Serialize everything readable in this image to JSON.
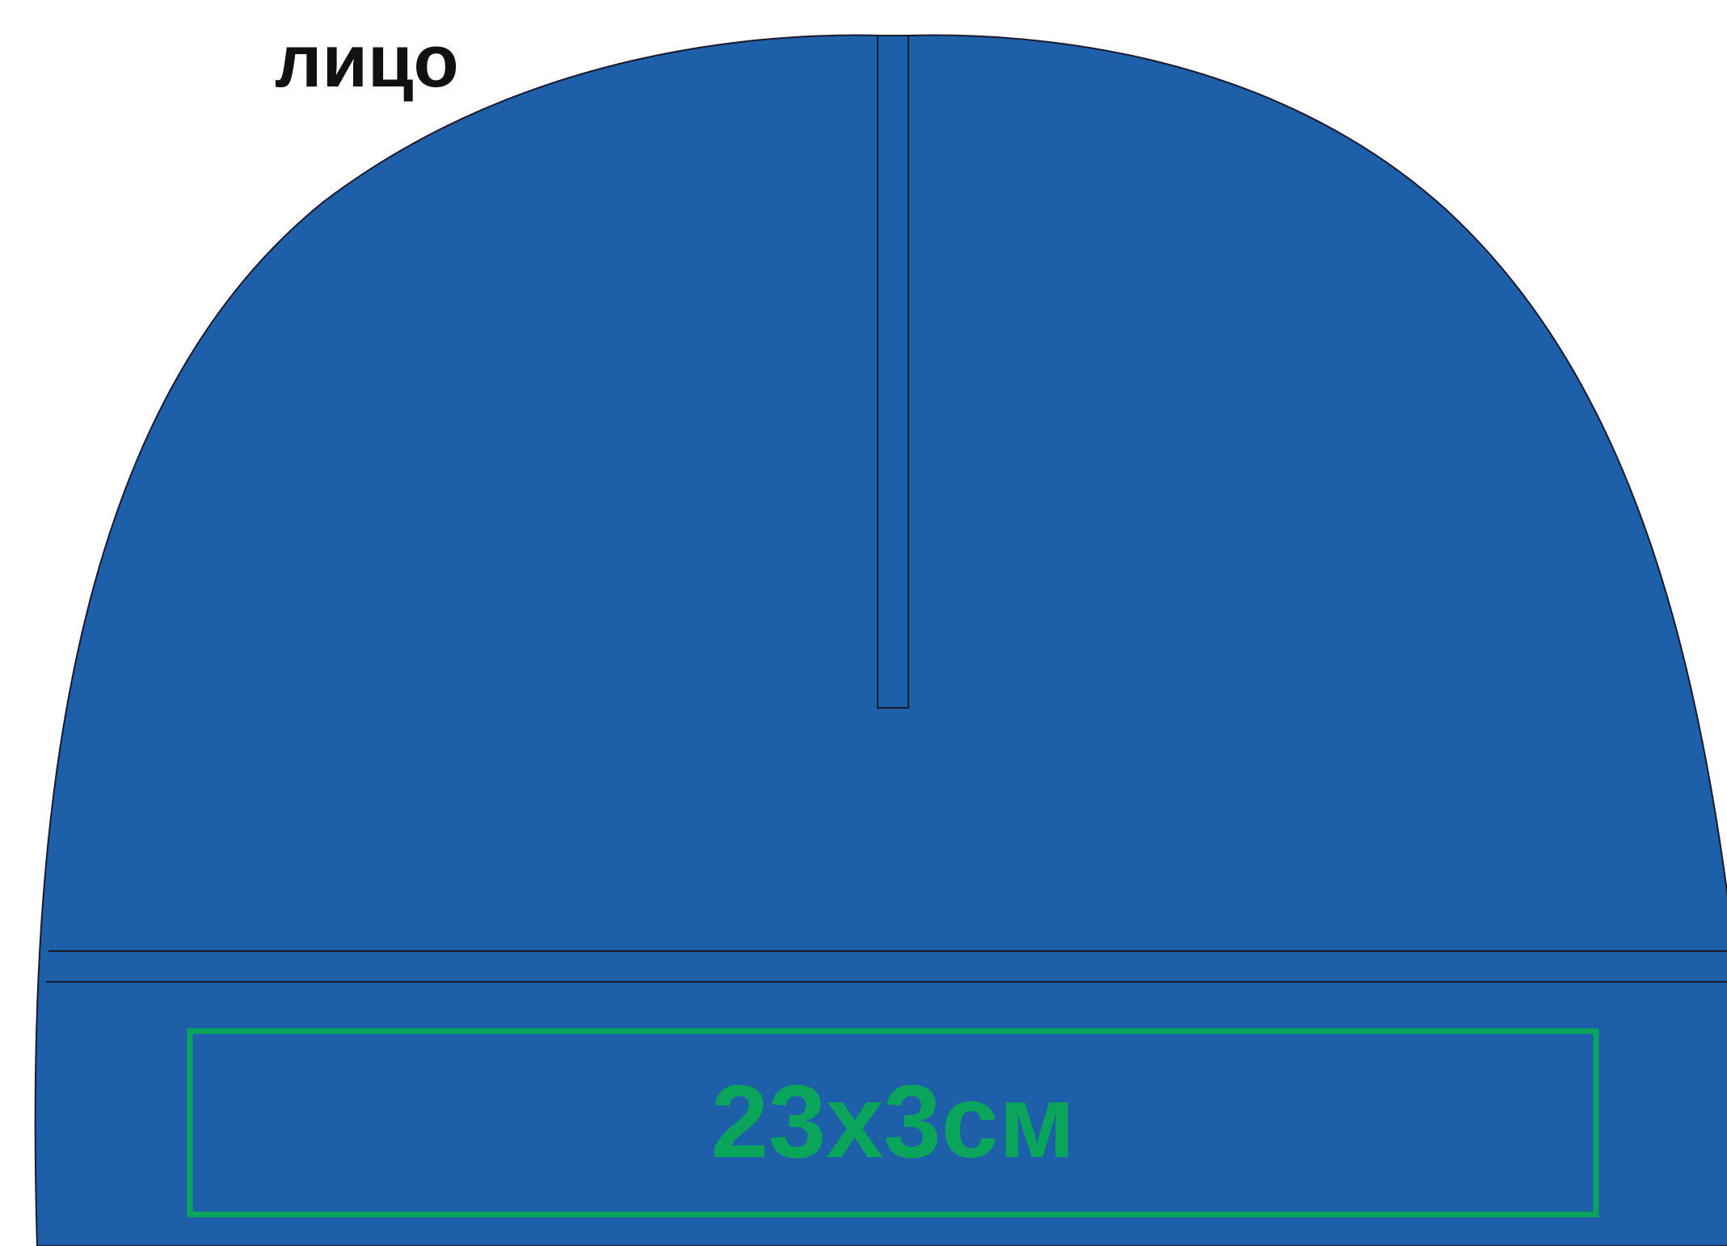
{
  "labels": {
    "side": "лицо",
    "print_area_size": "23х3см"
  },
  "colors": {
    "fabric": "#1e5faa",
    "outline": "#1a1a2e",
    "print_area": "#0aa55a",
    "label_text": "#111111",
    "background": "#ffffff"
  }
}
